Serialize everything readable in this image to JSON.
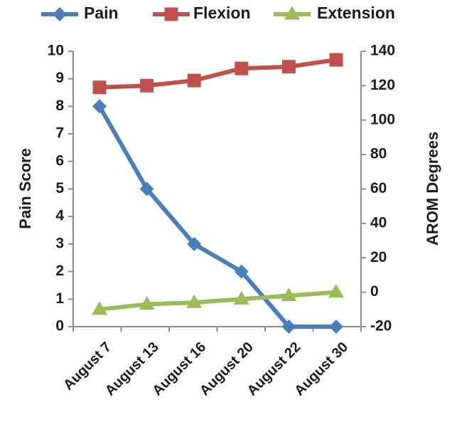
{
  "chart_data": {
    "type": "line",
    "categories": [
      "August 7",
      "August 13",
      "August 16",
      "August 20",
      "August 22",
      "August 30"
    ],
    "y_axis_left": {
      "label": "Pain Score",
      "range": [
        0,
        10
      ],
      "ticks": [
        "0",
        "1",
        "2",
        "3",
        "4",
        "5",
        "6",
        "7",
        "8",
        "9",
        "10"
      ]
    },
    "y_axis_right": {
      "label": "AROM  Degrees",
      "range": [
        -20,
        140
      ],
      "ticks": [
        "-20",
        "0",
        "20",
        "40",
        "60",
        "80",
        "100",
        "120",
        "140"
      ]
    },
    "series": [
      {
        "name": "Pain",
        "axis": "left",
        "marker": "diamond",
        "color": "#4a7ebb",
        "values": [
          8,
          5,
          3,
          2,
          0,
          0
        ]
      },
      {
        "name": "Flexion",
        "axis": "right",
        "marker": "square",
        "color": "#c0504d",
        "values": [
          119,
          120,
          123,
          130,
          131,
          135
        ]
      },
      {
        "name": "Extension",
        "axis": "right",
        "marker": "triangle",
        "color": "#9bbb59",
        "values": [
          -10,
          -7,
          -6,
          -4,
          -2,
          0
        ]
      }
    ],
    "legend_position": "top",
    "grid": false
  }
}
